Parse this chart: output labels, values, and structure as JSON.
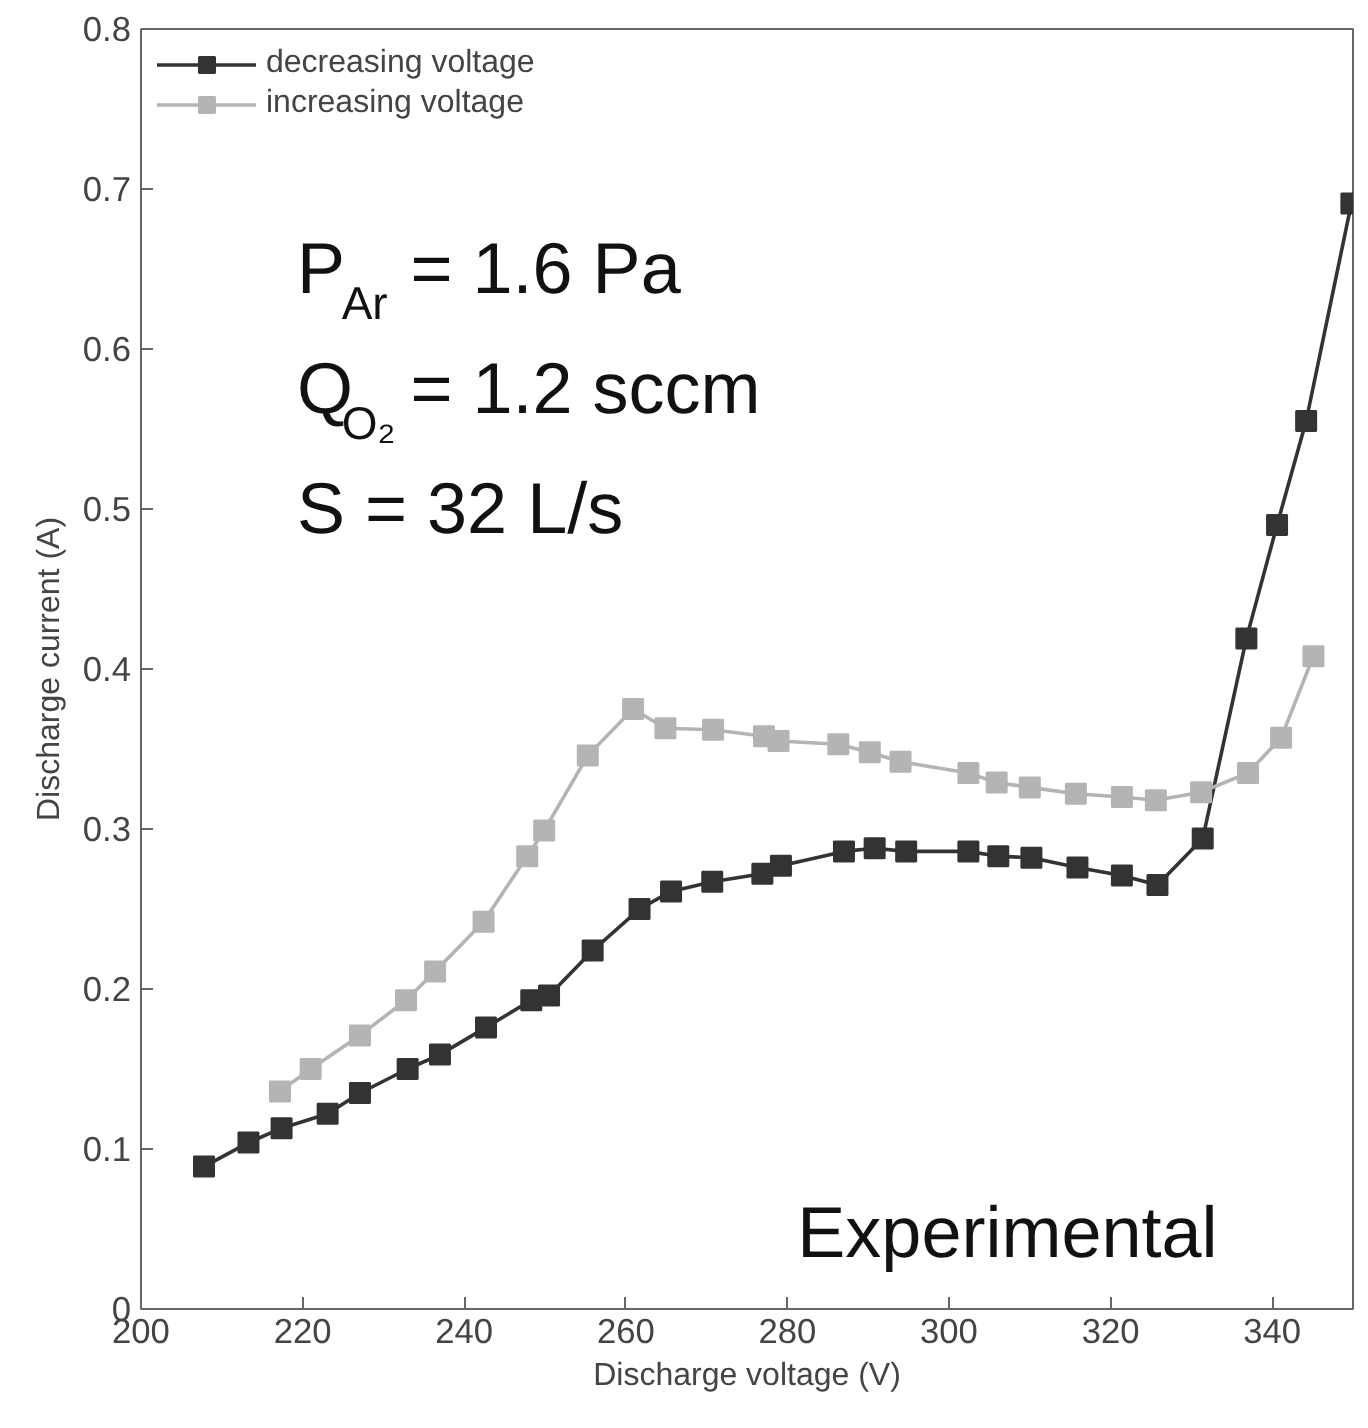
{
  "chart_data": {
    "type": "line",
    "xlabel": "Discharge voltage (V)",
    "ylabel": "Discharge current (A)",
    "xlim": [
      200,
      350
    ],
    "ylim": [
      0,
      0.8
    ],
    "xticks": [
      200,
      220,
      240,
      260,
      280,
      300,
      320,
      340
    ],
    "yticks": [
      0,
      0.1,
      0.2,
      0.3,
      0.4,
      0.5,
      0.6,
      0.7,
      0.8
    ],
    "grid": false,
    "legend": "top left",
    "marker": "square",
    "line_style": "solid",
    "annotations": [
      "P$_{Ar}$ = 1.6 Pa",
      "Q$_{O₂}$ = 1.2 sccm",
      "S = 32 L/s",
      "Experimental"
    ],
    "series": [
      {
        "name": "decreasing voltage",
        "color": "#333333",
        "x": [
          207.8,
          213.3,
          217.4,
          223.1,
          227.1,
          233.0,
          237.0,
          242.7,
          248.3,
          250.5,
          255.9,
          261.7,
          265.6,
          270.7,
          276.9,
          279.2,
          287.0,
          290.8,
          294.7,
          302.4,
          306.1,
          310.2,
          315.9,
          321.4,
          325.8,
          331.4,
          336.8,
          340.6,
          344.2,
          349.8
        ],
        "values": [
          0.089,
          0.104,
          0.113,
          0.122,
          0.135,
          0.15,
          0.159,
          0.176,
          0.193,
          0.196,
          0.224,
          0.25,
          0.261,
          0.267,
          0.272,
          0.277,
          0.286,
          0.288,
          0.286,
          0.286,
          0.283,
          0.282,
          0.276,
          0.271,
          0.265,
          0.294,
          0.419,
          0.49,
          0.555,
          0.691
        ]
      },
      {
        "name": "increasing voltage",
        "color": "#b4b4b4",
        "x": [
          217.2,
          221.0,
          227.1,
          232.8,
          236.4,
          242.4,
          247.8,
          249.9,
          255.3,
          260.9,
          264.9,
          270.8,
          277.1,
          278.9,
          286.3,
          290.2,
          294.0,
          302.4,
          305.9,
          310.0,
          315.7,
          321.4,
          325.6,
          331.2,
          337.0,
          341.1,
          345.1
        ],
        "values": [
          0.136,
          0.15,
          0.171,
          0.193,
          0.211,
          0.242,
          0.283,
          0.299,
          0.346,
          0.375,
          0.363,
          0.362,
          0.358,
          0.355,
          0.353,
          0.348,
          0.342,
          0.335,
          0.329,
          0.326,
          0.322,
          0.32,
          0.318,
          0.323,
          0.335,
          0.357,
          0.408
        ]
      }
    ]
  }
}
